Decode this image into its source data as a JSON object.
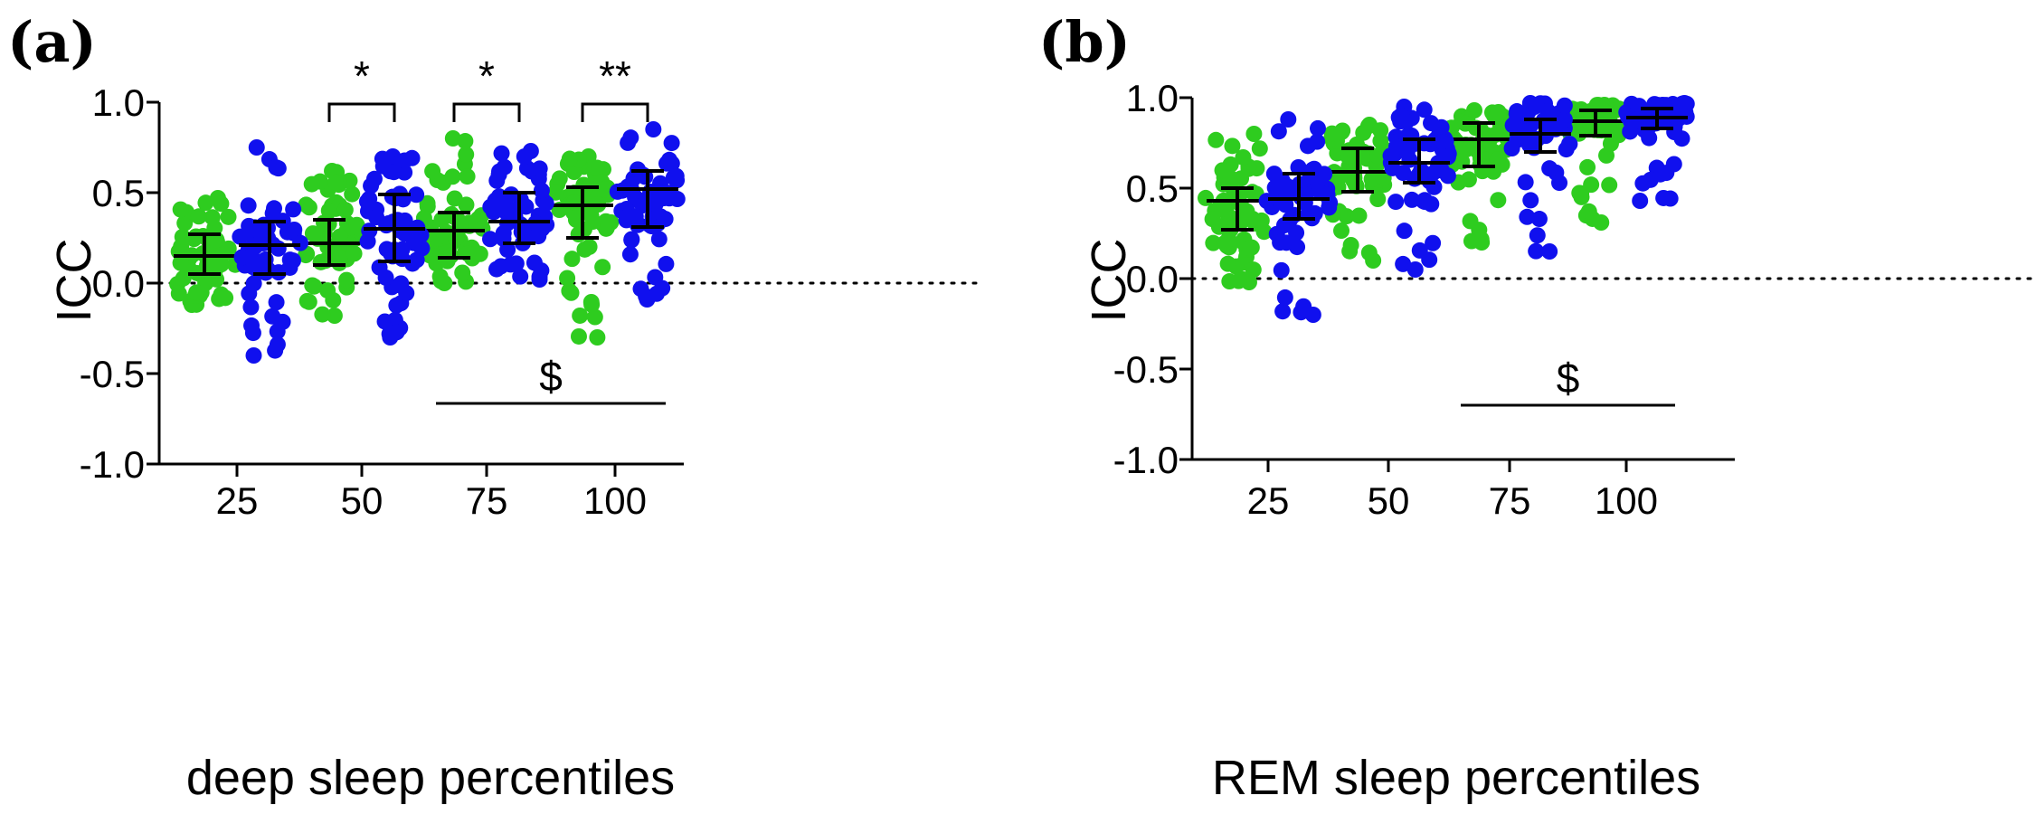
{
  "colors": {
    "group_a": "#2ecc1f",
    "group_b": "#1010ee",
    "line": "#000000"
  },
  "chart_data": [
    {
      "type": "scatter",
      "panel_label": "(a)",
      "xlabel": "deep sleep percentiles",
      "ylabel": "ICC",
      "ylim": [
        -1.0,
        1.0
      ],
      "yticks": [
        "-1.0",
        "-0.5",
        "0.0",
        "0.5",
        "1.0"
      ],
      "yticks_values": [
        -1.0,
        -0.5,
        0.0,
        0.5,
        1.0
      ],
      "categories": [
        "25",
        "50",
        "75",
        "100"
      ],
      "reference_line": 0.0,
      "series": [
        {
          "name": "green",
          "color_key": "group_a",
          "summary": [
            {
              "median": 0.15,
              "low": 0.05,
              "high": 0.27,
              "min": -0.12,
              "max": 0.47
            },
            {
              "median": 0.22,
              "low": 0.1,
              "high": 0.35,
              "min": -0.18,
              "max": 0.62
            },
            {
              "median": 0.29,
              "low": 0.14,
              "high": 0.39,
              "min": 0.0,
              "max": 0.8
            },
            {
              "median": 0.43,
              "low": 0.25,
              "high": 0.53,
              "min": -0.3,
              "max": 0.7
            }
          ]
        },
        {
          "name": "blue",
          "color_key": "group_b",
          "summary": [
            {
              "median": 0.21,
              "low": 0.05,
              "high": 0.34,
              "min": -0.4,
              "max": 0.75
            },
            {
              "median": 0.3,
              "low": 0.12,
              "high": 0.49,
              "min": -0.3,
              "max": 0.7
            },
            {
              "median": 0.34,
              "low": 0.22,
              "high": 0.5,
              "min": 0.02,
              "max": 0.73
            },
            {
              "median": 0.52,
              "low": 0.31,
              "high": 0.62,
              "min": -0.09,
              "max": 0.85
            }
          ]
        }
      ],
      "significance": [
        {
          "category": "50",
          "label": "*"
        },
        {
          "category": "75",
          "label": "*"
        },
        {
          "category": "100",
          "label": "**"
        }
      ],
      "trend": {
        "label": "$",
        "from": "75",
        "to": "100"
      }
    },
    {
      "type": "scatter",
      "panel_label": "(b)",
      "xlabel": "REM sleep percentiles",
      "ylabel": "ICC",
      "ylim": [
        -1.0,
        1.0
      ],
      "yticks": [
        "-1.0",
        "-0.5",
        "0.0",
        "0.5",
        "1.0"
      ],
      "yticks_values": [
        -1.0,
        -0.5,
        0.0,
        0.5,
        1.0
      ],
      "categories": [
        "25",
        "50",
        "75",
        "100"
      ],
      "reference_line": 0.0,
      "series": [
        {
          "name": "green",
          "color_key": "group_a",
          "summary": [
            {
              "median": 0.43,
              "low": 0.27,
              "high": 0.5,
              "min": -0.02,
              "max": 0.8
            },
            {
              "median": 0.59,
              "low": 0.48,
              "high": 0.72,
              "min": 0.1,
              "max": 0.85
            },
            {
              "median": 0.77,
              "low": 0.62,
              "high": 0.86,
              "min": 0.2,
              "max": 0.93
            },
            {
              "median": 0.87,
              "low": 0.79,
              "high": 0.93,
              "min": 0.31,
              "max": 0.96
            }
          ]
        },
        {
          "name": "blue",
          "color_key": "group_b",
          "summary": [
            {
              "median": 0.44,
              "low": 0.33,
              "high": 0.58,
              "min": -0.2,
              "max": 0.88
            },
            {
              "median": 0.64,
              "low": 0.53,
              "high": 0.77,
              "min": 0.05,
              "max": 0.95
            },
            {
              "median": 0.8,
              "low": 0.7,
              "high": 0.88,
              "min": 0.15,
              "max": 0.97
            },
            {
              "median": 0.89,
              "low": 0.83,
              "high": 0.94,
              "min": 0.43,
              "max": 0.97
            }
          ]
        }
      ],
      "trend": {
        "label": "$",
        "from": "75",
        "to": "100"
      }
    }
  ]
}
